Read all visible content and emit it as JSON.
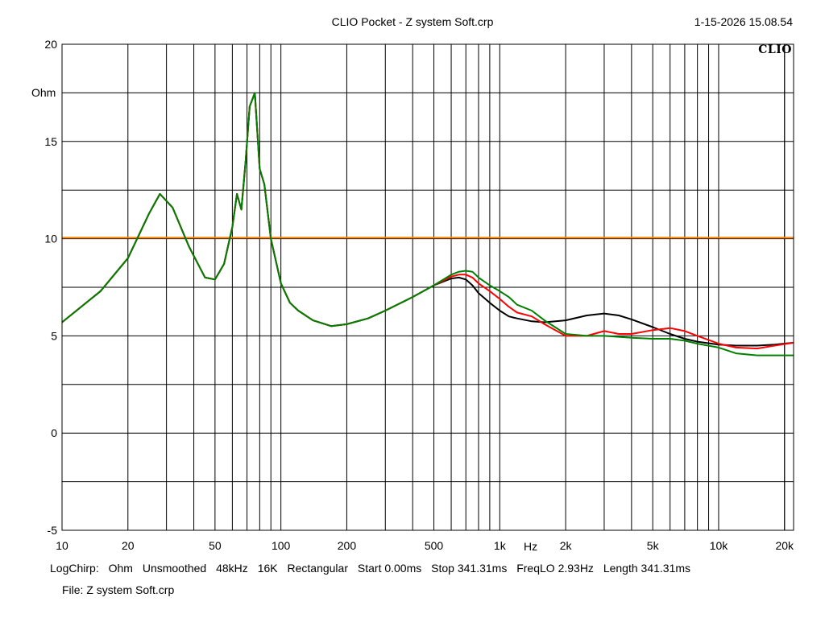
{
  "window": {
    "title": "CLIO Pocket - Z  system Soft.crp",
    "timestamp": "1-15-2026 15.08.54",
    "logo": "CLIO"
  },
  "footer": {
    "items": [
      "LogChirp:",
      "Ohm",
      "Unsmoothed",
      "48kHz",
      "16K",
      "Rectangular",
      "Start 0.00ms",
      "Stop 341.31ms",
      "FreqLO 2.93Hz",
      "Length 341.31ms"
    ],
    "file": "File: Z  system Soft.crp"
  },
  "chart_data": {
    "type": "line",
    "title": "CLIO Pocket - Z  system Soft.crp",
    "xlabel": "Hz",
    "ylabel": "Ohm",
    "x_scale": "log",
    "xlim": [
      10,
      22000
    ],
    "ylim": [
      -5,
      20
    ],
    "grid": true,
    "xticks": [
      {
        "value": 10,
        "label": "10"
      },
      {
        "value": 20,
        "label": "20"
      },
      {
        "value": 50,
        "label": "50"
      },
      {
        "value": 100,
        "label": "100"
      },
      {
        "value": 200,
        "label": "200"
      },
      {
        "value": 500,
        "label": "500"
      },
      {
        "value": 1000,
        "label": "1k"
      },
      {
        "value": 2000,
        "label": "2k"
      },
      {
        "value": 5000,
        "label": "5k"
      },
      {
        "value": 10000,
        "label": "10k"
      },
      {
        "value": 20000,
        "label": "20k"
      }
    ],
    "yticks": [
      {
        "value": -5,
        "label": "-5"
      },
      {
        "value": 0,
        "label": "0"
      },
      {
        "value": 5,
        "label": "5"
      },
      {
        "value": 10,
        "label": "10"
      },
      {
        "value": 15,
        "label": "15"
      },
      {
        "value": 20,
        "label": "20"
      }
    ],
    "series": [
      {
        "color": "#ff8000",
        "x": [
          10,
          22000
        ],
        "y": [
          10.05,
          10.05
        ]
      },
      {
        "color": "#000000",
        "x": [
          10,
          15,
          20,
          25,
          28,
          32,
          38,
          45,
          50,
          55,
          60,
          63,
          66,
          69,
          72,
          76,
          80,
          84,
          90,
          100,
          110,
          120,
          140,
          170,
          200,
          250,
          300,
          400,
          500,
          600,
          650,
          700,
          750,
          800,
          900,
          1000,
          1100,
          1200,
          1400,
          1600,
          2000,
          2500,
          3000,
          3500,
          4000,
          5000,
          6000,
          7000,
          8000,
          10000,
          12000,
          15000,
          18000,
          22000
        ],
        "y": [
          5.7,
          7.3,
          9.0,
          11.3,
          12.3,
          11.6,
          9.6,
          8.0,
          7.9,
          8.7,
          10.6,
          12.3,
          11.5,
          14.0,
          16.8,
          17.5,
          13.6,
          12.8,
          10.0,
          7.7,
          6.7,
          6.3,
          5.8,
          5.5,
          5.6,
          5.9,
          6.3,
          7.0,
          7.6,
          7.95,
          8.0,
          7.9,
          7.6,
          7.2,
          6.7,
          6.3,
          6.0,
          5.9,
          5.75,
          5.7,
          5.8,
          6.05,
          6.15,
          6.05,
          5.85,
          5.45,
          5.1,
          4.85,
          4.7,
          4.55,
          4.5,
          4.5,
          4.55,
          4.65
        ]
      },
      {
        "color": "#ff0000",
        "x": [
          10,
          15,
          20,
          25,
          28,
          32,
          38,
          45,
          50,
          55,
          60,
          63,
          66,
          69,
          72,
          76,
          80,
          84,
          90,
          100,
          110,
          120,
          140,
          170,
          200,
          250,
          300,
          400,
          500,
          600,
          650,
          700,
          750,
          800,
          900,
          1000,
          1100,
          1200,
          1400,
          1600,
          2000,
          2500,
          3000,
          3500,
          4000,
          5000,
          6000,
          7000,
          8000,
          10000,
          12000,
          15000,
          18000,
          22000
        ],
        "y": [
          5.7,
          7.3,
          9.0,
          11.3,
          12.3,
          11.6,
          9.6,
          8.0,
          7.9,
          8.7,
          10.6,
          12.3,
          11.5,
          14.0,
          16.8,
          17.5,
          13.6,
          12.8,
          10.0,
          7.7,
          6.7,
          6.3,
          5.8,
          5.5,
          5.6,
          5.9,
          6.3,
          7.0,
          7.6,
          8.05,
          8.15,
          8.15,
          8.0,
          7.7,
          7.3,
          6.9,
          6.5,
          6.2,
          6.0,
          5.6,
          5.0,
          5.0,
          5.25,
          5.1,
          5.1,
          5.3,
          5.4,
          5.25,
          5.0,
          4.6,
          4.4,
          4.35,
          4.5,
          4.65
        ]
      },
      {
        "color": "#008000",
        "x": [
          10,
          15,
          20,
          25,
          28,
          32,
          38,
          45,
          50,
          55,
          60,
          63,
          66,
          69,
          72,
          76,
          80,
          84,
          90,
          100,
          110,
          120,
          140,
          170,
          200,
          250,
          300,
          400,
          500,
          600,
          650,
          700,
          750,
          800,
          900,
          1000,
          1100,
          1200,
          1400,
          1600,
          2000,
          2500,
          3000,
          3500,
          4000,
          5000,
          6000,
          7000,
          8000,
          10000,
          12000,
          15000,
          18000,
          22000
        ],
        "y": [
          5.7,
          7.3,
          9.0,
          11.3,
          12.3,
          11.6,
          9.6,
          8.0,
          7.9,
          8.7,
          10.6,
          12.3,
          11.5,
          14.0,
          16.8,
          17.5,
          13.6,
          12.8,
          10.0,
          7.7,
          6.7,
          6.3,
          5.8,
          5.5,
          5.6,
          5.9,
          6.3,
          7.0,
          7.6,
          8.15,
          8.3,
          8.35,
          8.3,
          8.0,
          7.6,
          7.3,
          7.0,
          6.6,
          6.3,
          5.8,
          5.1,
          5.0,
          5.0,
          4.95,
          4.9,
          4.85,
          4.85,
          4.75,
          4.6,
          4.4,
          4.1,
          4.0,
          4.0,
          4.0
        ]
      }
    ]
  }
}
